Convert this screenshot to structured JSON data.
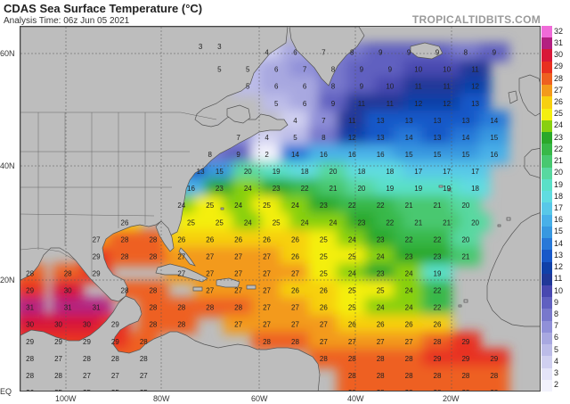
{
  "header": {
    "title": "CDAS Sea Surface Temperature (°C)",
    "subtitle": "Analysis Time: 06z Jun 05 2021",
    "brand": "TROPICALTIDBITS.COM"
  },
  "axes": {
    "lat_labels": [
      "60N",
      "40N",
      "20N",
      "EQ"
    ],
    "lon_labels": [
      "100W",
      "80W",
      "60W",
      "40W",
      "20W"
    ]
  },
  "colorbar": {
    "labels": [
      "32",
      "31",
      "30",
      "29",
      "28",
      "27",
      "26",
      "25",
      "24",
      "23",
      "22",
      "21",
      "20",
      "19",
      "18",
      "17",
      "16",
      "15",
      "14",
      "13",
      "12",
      "11",
      "10",
      "9",
      "8",
      "7",
      "6",
      "5",
      "4",
      "3",
      "2"
    ],
    "colors": [
      "#f06bd8",
      "#b32080",
      "#d81838",
      "#e83020",
      "#ee6020",
      "#f39a1c",
      "#f7d010",
      "#f4ef10",
      "#88d010",
      "#2aa82a",
      "#38b848",
      "#48c870",
      "#58d8a0",
      "#5ae0c8",
      "#60dce0",
      "#58c8e8",
      "#48b0e8",
      "#3898e0",
      "#2878d8",
      "#1858c8",
      "#1040a8",
      "#203898",
      "#4848b0",
      "#6060c0",
      "#7878cc",
      "#9090d8",
      "#a8a8e0",
      "#bcbce8",
      "#d0d0f0",
      "#e4e4f8",
      "#f2f2fc"
    ]
  },
  "readings": [
    {
      "lat": 61,
      "lon": -72,
      "v": "3"
    },
    {
      "lat": 61,
      "lon": -68,
      "v": "3"
    },
    {
      "lat": 60,
      "lon": -58,
      "v": "4"
    },
    {
      "lat": 60,
      "lon": -52,
      "v": "6"
    },
    {
      "lat": 60,
      "lon": -46,
      "v": "7"
    },
    {
      "lat": 60,
      "lon": -40,
      "v": "8"
    },
    {
      "lat": 60,
      "lon": -34,
      "v": "9"
    },
    {
      "lat": 60,
      "lon": -28,
      "v": "9"
    },
    {
      "lat": 60,
      "lon": -22,
      "v": "9"
    },
    {
      "lat": 60,
      "lon": -16,
      "v": "8"
    },
    {
      "lat": 60,
      "lon": -10,
      "v": "9"
    },
    {
      "lat": 57,
      "lon": -68,
      "v": "5"
    },
    {
      "lat": 57,
      "lon": -62,
      "v": "5"
    },
    {
      "lat": 57,
      "lon": -56,
      "v": "6"
    },
    {
      "lat": 57,
      "lon": -50,
      "v": "7"
    },
    {
      "lat": 57,
      "lon": -44,
      "v": "8"
    },
    {
      "lat": 57,
      "lon": -38,
      "v": "9"
    },
    {
      "lat": 57,
      "lon": -32,
      "v": "9"
    },
    {
      "lat": 57,
      "lon": -26,
      "v": "10"
    },
    {
      "lat": 57,
      "lon": -20,
      "v": "10"
    },
    {
      "lat": 57,
      "lon": -14,
      "v": "11"
    },
    {
      "lat": 54,
      "lon": -62,
      "v": "5"
    },
    {
      "lat": 54,
      "lon": -56,
      "v": "6"
    },
    {
      "lat": 54,
      "lon": -50,
      "v": "6"
    },
    {
      "lat": 54,
      "lon": -44,
      "v": "8"
    },
    {
      "lat": 54,
      "lon": -38,
      "v": "9"
    },
    {
      "lat": 54,
      "lon": -32,
      "v": "10"
    },
    {
      "lat": 54,
      "lon": -26,
      "v": "11"
    },
    {
      "lat": 54,
      "lon": -20,
      "v": "11"
    },
    {
      "lat": 54,
      "lon": -14,
      "v": "12"
    },
    {
      "lat": 51,
      "lon": -56,
      "v": "5"
    },
    {
      "lat": 51,
      "lon": -50,
      "v": "6"
    },
    {
      "lat": 51,
      "lon": -44,
      "v": "9"
    },
    {
      "lat": 51,
      "lon": -38,
      "v": "11"
    },
    {
      "lat": 51,
      "lon": -32,
      "v": "11"
    },
    {
      "lat": 51,
      "lon": -26,
      "v": "12"
    },
    {
      "lat": 51,
      "lon": -20,
      "v": "12"
    },
    {
      "lat": 51,
      "lon": -14,
      "v": "13"
    },
    {
      "lat": 48,
      "lon": -52,
      "v": "4"
    },
    {
      "lat": 48,
      "lon": -46,
      "v": "7"
    },
    {
      "lat": 48,
      "lon": -40,
      "v": "11"
    },
    {
      "lat": 48,
      "lon": -34,
      "v": "13"
    },
    {
      "lat": 48,
      "lon": -28,
      "v": "13"
    },
    {
      "lat": 48,
      "lon": -22,
      "v": "13"
    },
    {
      "lat": 48,
      "lon": -16,
      "v": "13"
    },
    {
      "lat": 48,
      "lon": -10,
      "v": "14"
    },
    {
      "lat": 45,
      "lon": -64,
      "v": "7"
    },
    {
      "lat": 45,
      "lon": -58,
      "v": "4"
    },
    {
      "lat": 45,
      "lon": -52,
      "v": "5"
    },
    {
      "lat": 45,
      "lon": -46,
      "v": "8"
    },
    {
      "lat": 45,
      "lon": -40,
      "v": "12"
    },
    {
      "lat": 45,
      "lon": -34,
      "v": "13"
    },
    {
      "lat": 45,
      "lon": -28,
      "v": "14"
    },
    {
      "lat": 45,
      "lon": -22,
      "v": "13"
    },
    {
      "lat": 45,
      "lon": -16,
      "v": "14"
    },
    {
      "lat": 45,
      "lon": -10,
      "v": "15"
    },
    {
      "lat": 42,
      "lon": -70,
      "v": "8"
    },
    {
      "lat": 42,
      "lon": -64,
      "v": "9"
    },
    {
      "lat": 42,
      "lon": -58,
      "v": "2"
    },
    {
      "lat": 42,
      "lon": -52,
      "v": "14"
    },
    {
      "lat": 42,
      "lon": -46,
      "v": "16"
    },
    {
      "lat": 42,
      "lon": -40,
      "v": "16"
    },
    {
      "lat": 42,
      "lon": -34,
      "v": "16"
    },
    {
      "lat": 42,
      "lon": -28,
      "v": "15"
    },
    {
      "lat": 42,
      "lon": -22,
      "v": "15"
    },
    {
      "lat": 42,
      "lon": -16,
      "v": "15"
    },
    {
      "lat": 42,
      "lon": -10,
      "v": "16"
    },
    {
      "lat": 39,
      "lon": -72,
      "v": "13"
    },
    {
      "lat": 39,
      "lon": -68,
      "v": "15"
    },
    {
      "lat": 39,
      "lon": -62,
      "v": "20"
    },
    {
      "lat": 39,
      "lon": -56,
      "v": "19"
    },
    {
      "lat": 39,
      "lon": -50,
      "v": "18"
    },
    {
      "lat": 39,
      "lon": -44,
      "v": "20"
    },
    {
      "lat": 39,
      "lon": -38,
      "v": "18"
    },
    {
      "lat": 39,
      "lon": -32,
      "v": "18"
    },
    {
      "lat": 39,
      "lon": -26,
      "v": "17"
    },
    {
      "lat": 39,
      "lon": -20,
      "v": "17"
    },
    {
      "lat": 39,
      "lon": -14,
      "v": "17"
    },
    {
      "lat": 36,
      "lon": -74,
      "v": "16"
    },
    {
      "lat": 36,
      "lon": -68,
      "v": "23"
    },
    {
      "lat": 36,
      "lon": -62,
      "v": "24"
    },
    {
      "lat": 36,
      "lon": -56,
      "v": "23"
    },
    {
      "lat": 36,
      "lon": -50,
      "v": "22"
    },
    {
      "lat": 36,
      "lon": -44,
      "v": "21"
    },
    {
      "lat": 36,
      "lon": -38,
      "v": "20"
    },
    {
      "lat": 36,
      "lon": -32,
      "v": "19"
    },
    {
      "lat": 36,
      "lon": -26,
      "v": "19"
    },
    {
      "lat": 36,
      "lon": -20,
      "v": "19"
    },
    {
      "lat": 36,
      "lon": -14,
      "v": "18"
    },
    {
      "lat": 33,
      "lon": -76,
      "v": "24"
    },
    {
      "lat": 33,
      "lon": -70,
      "v": "25"
    },
    {
      "lat": 33,
      "lon": -64,
      "v": "24"
    },
    {
      "lat": 33,
      "lon": -58,
      "v": "25"
    },
    {
      "lat": 33,
      "lon": -52,
      "v": "24"
    },
    {
      "lat": 33,
      "lon": -46,
      "v": "23"
    },
    {
      "lat": 33,
      "lon": -40,
      "v": "22"
    },
    {
      "lat": 33,
      "lon": -34,
      "v": "22"
    },
    {
      "lat": 33,
      "lon": -28,
      "v": "21"
    },
    {
      "lat": 33,
      "lon": -22,
      "v": "21"
    },
    {
      "lat": 33,
      "lon": -16,
      "v": "20"
    },
    {
      "lat": 30,
      "lon": -88,
      "v": "26"
    },
    {
      "lat": 30,
      "lon": -74,
      "v": "25"
    },
    {
      "lat": 30,
      "lon": -68,
      "v": "25"
    },
    {
      "lat": 30,
      "lon": -62,
      "v": "24"
    },
    {
      "lat": 30,
      "lon": -56,
      "v": "25"
    },
    {
      "lat": 30,
      "lon": -50,
      "v": "24"
    },
    {
      "lat": 30,
      "lon": -44,
      "v": "24"
    },
    {
      "lat": 30,
      "lon": -38,
      "v": "23"
    },
    {
      "lat": 30,
      "lon": -32,
      "v": "22"
    },
    {
      "lat": 30,
      "lon": -26,
      "v": "21"
    },
    {
      "lat": 30,
      "lon": -20,
      "v": "21"
    },
    {
      "lat": 30,
      "lon": -14,
      "v": "20"
    },
    {
      "lat": 27,
      "lon": -94,
      "v": "27"
    },
    {
      "lat": 27,
      "lon": -88,
      "v": "28"
    },
    {
      "lat": 27,
      "lon": -82,
      "v": "28"
    },
    {
      "lat": 27,
      "lon": -76,
      "v": "26"
    },
    {
      "lat": 27,
      "lon": -70,
      "v": "26"
    },
    {
      "lat": 27,
      "lon": -64,
      "v": "26"
    },
    {
      "lat": 27,
      "lon": -58,
      "v": "26"
    },
    {
      "lat": 27,
      "lon": -52,
      "v": "26"
    },
    {
      "lat": 27,
      "lon": -46,
      "v": "25"
    },
    {
      "lat": 27,
      "lon": -40,
      "v": "24"
    },
    {
      "lat": 27,
      "lon": -34,
      "v": "23"
    },
    {
      "lat": 27,
      "lon": -28,
      "v": "22"
    },
    {
      "lat": 27,
      "lon": -22,
      "v": "22"
    },
    {
      "lat": 27,
      "lon": -16,
      "v": "20"
    },
    {
      "lat": 24,
      "lon": -94,
      "v": "29"
    },
    {
      "lat": 24,
      "lon": -88,
      "v": "28"
    },
    {
      "lat": 24,
      "lon": -82,
      "v": "28"
    },
    {
      "lat": 24,
      "lon": -76,
      "v": "27"
    },
    {
      "lat": 24,
      "lon": -70,
      "v": "27"
    },
    {
      "lat": 24,
      "lon": -64,
      "v": "27"
    },
    {
      "lat": 24,
      "lon": -58,
      "v": "27"
    },
    {
      "lat": 24,
      "lon": -52,
      "v": "26"
    },
    {
      "lat": 24,
      "lon": -46,
      "v": "25"
    },
    {
      "lat": 24,
      "lon": -40,
      "v": "25"
    },
    {
      "lat": 24,
      "lon": -34,
      "v": "24"
    },
    {
      "lat": 24,
      "lon": -28,
      "v": "23"
    },
    {
      "lat": 24,
      "lon": -22,
      "v": "23"
    },
    {
      "lat": 24,
      "lon": -16,
      "v": "21"
    },
    {
      "lat": 21,
      "lon": -108,
      "v": "28"
    },
    {
      "lat": 21,
      "lon": -100,
      "v": "28"
    },
    {
      "lat": 21,
      "lon": -94,
      "v": "29"
    },
    {
      "lat": 21,
      "lon": -76,
      "v": "27"
    },
    {
      "lat": 21,
      "lon": -70,
      "v": "27"
    },
    {
      "lat": 21,
      "lon": -64,
      "v": "27"
    },
    {
      "lat": 21,
      "lon": -58,
      "v": "27"
    },
    {
      "lat": 21,
      "lon": -52,
      "v": "27"
    },
    {
      "lat": 21,
      "lon": -46,
      "v": "25"
    },
    {
      "lat": 21,
      "lon": -40,
      "v": "24"
    },
    {
      "lat": 21,
      "lon": -34,
      "v": "23"
    },
    {
      "lat": 21,
      "lon": -28,
      "v": "24"
    },
    {
      "lat": 21,
      "lon": -22,
      "v": "19"
    },
    {
      "lat": 18,
      "lon": -108,
      "v": "29"
    },
    {
      "lat": 18,
      "lon": -100,
      "v": "30"
    },
    {
      "lat": 18,
      "lon": -88,
      "v": "28"
    },
    {
      "lat": 18,
      "lon": -82,
      "v": "28"
    },
    {
      "lat": 18,
      "lon": -70,
      "v": "27"
    },
    {
      "lat": 18,
      "lon": -64,
      "v": "27"
    },
    {
      "lat": 18,
      "lon": -58,
      "v": "27"
    },
    {
      "lat": 18,
      "lon": -52,
      "v": "26"
    },
    {
      "lat": 18,
      "lon": -46,
      "v": "26"
    },
    {
      "lat": 18,
      "lon": -40,
      "v": "25"
    },
    {
      "lat": 18,
      "lon": -34,
      "v": "25"
    },
    {
      "lat": 18,
      "lon": -28,
      "v": "24"
    },
    {
      "lat": 18,
      "lon": -22,
      "v": "22"
    },
    {
      "lat": 15,
      "lon": -108,
      "v": "31"
    },
    {
      "lat": 15,
      "lon": -100,
      "v": "31"
    },
    {
      "lat": 15,
      "lon": -94,
      "v": "31"
    },
    {
      "lat": 15,
      "lon": -82,
      "v": "28"
    },
    {
      "lat": 15,
      "lon": -76,
      "v": "28"
    },
    {
      "lat": 15,
      "lon": -70,
      "v": "28"
    },
    {
      "lat": 15,
      "lon": -64,
      "v": "28"
    },
    {
      "lat": 15,
      "lon": -58,
      "v": "27"
    },
    {
      "lat": 15,
      "lon": -52,
      "v": "27"
    },
    {
      "lat": 15,
      "lon": -46,
      "v": "26"
    },
    {
      "lat": 15,
      "lon": -40,
      "v": "25"
    },
    {
      "lat": 15,
      "lon": -34,
      "v": "24"
    },
    {
      "lat": 15,
      "lon": -28,
      "v": "24"
    },
    {
      "lat": 15,
      "lon": -22,
      "v": "22"
    },
    {
      "lat": 12,
      "lon": -108,
      "v": "30"
    },
    {
      "lat": 12,
      "lon": -102,
      "v": "30"
    },
    {
      "lat": 12,
      "lon": -96,
      "v": "30"
    },
    {
      "lat": 12,
      "lon": -90,
      "v": "29"
    },
    {
      "lat": 12,
      "lon": -82,
      "v": "28"
    },
    {
      "lat": 12,
      "lon": -76,
      "v": "28"
    },
    {
      "lat": 12,
      "lon": -64,
      "v": "27"
    },
    {
      "lat": 12,
      "lon": -58,
      "v": "27"
    },
    {
      "lat": 12,
      "lon": -52,
      "v": "27"
    },
    {
      "lat": 12,
      "lon": -46,
      "v": "27"
    },
    {
      "lat": 12,
      "lon": -40,
      "v": "26"
    },
    {
      "lat": 12,
      "lon": -34,
      "v": "26"
    },
    {
      "lat": 12,
      "lon": -28,
      "v": "26"
    },
    {
      "lat": 12,
      "lon": -22,
      "v": "26"
    },
    {
      "lat": 9,
      "lon": -108,
      "v": "29"
    },
    {
      "lat": 9,
      "lon": -102,
      "v": "29"
    },
    {
      "lat": 9,
      "lon": -96,
      "v": "29"
    },
    {
      "lat": 9,
      "lon": -90,
      "v": "29"
    },
    {
      "lat": 9,
      "lon": -84,
      "v": "28"
    },
    {
      "lat": 9,
      "lon": -58,
      "v": "28"
    },
    {
      "lat": 9,
      "lon": -52,
      "v": "28"
    },
    {
      "lat": 9,
      "lon": -46,
      "v": "27"
    },
    {
      "lat": 9,
      "lon": -40,
      "v": "27"
    },
    {
      "lat": 9,
      "lon": -34,
      "v": "27"
    },
    {
      "lat": 9,
      "lon": -28,
      "v": "27"
    },
    {
      "lat": 9,
      "lon": -22,
      "v": "28"
    },
    {
      "lat": 9,
      "lon": -16,
      "v": "29"
    },
    {
      "lat": 6,
      "lon": -108,
      "v": "28"
    },
    {
      "lat": 6,
      "lon": -102,
      "v": "27"
    },
    {
      "lat": 6,
      "lon": -96,
      "v": "28"
    },
    {
      "lat": 6,
      "lon": -90,
      "v": "28"
    },
    {
      "lat": 6,
      "lon": -84,
      "v": "28"
    },
    {
      "lat": 6,
      "lon": -46,
      "v": "28"
    },
    {
      "lat": 6,
      "lon": -40,
      "v": "28"
    },
    {
      "lat": 6,
      "lon": -34,
      "v": "28"
    },
    {
      "lat": 6,
      "lon": -28,
      "v": "28"
    },
    {
      "lat": 6,
      "lon": -22,
      "v": "29"
    },
    {
      "lat": 6,
      "lon": -16,
      "v": "29"
    },
    {
      "lat": 6,
      "lon": -10,
      "v": "29"
    },
    {
      "lat": 3,
      "lon": -108,
      "v": "28"
    },
    {
      "lat": 3,
      "lon": -102,
      "v": "28"
    },
    {
      "lat": 3,
      "lon": -96,
      "v": "27"
    },
    {
      "lat": 3,
      "lon": -90,
      "v": "27"
    },
    {
      "lat": 3,
      "lon": -84,
      "v": "27"
    },
    {
      "lat": 3,
      "lon": -40,
      "v": "28"
    },
    {
      "lat": 3,
      "lon": -34,
      "v": "28"
    },
    {
      "lat": 3,
      "lon": -28,
      "v": "28"
    },
    {
      "lat": 3,
      "lon": -22,
      "v": "28"
    },
    {
      "lat": 3,
      "lon": -16,
      "v": "28"
    },
    {
      "lat": 3,
      "lon": -10,
      "v": "28"
    },
    {
      "lat": 0,
      "lon": -108,
      "v": "26"
    },
    {
      "lat": 0,
      "lon": -102,
      "v": "25"
    },
    {
      "lat": 0,
      "lon": -96,
      "v": "25"
    },
    {
      "lat": 0,
      "lon": -90,
      "v": "25"
    },
    {
      "lat": 0,
      "lon": -84,
      "v": "25"
    },
    {
      "lat": 0,
      "lon": -40,
      "v": "28"
    },
    {
      "lat": 0,
      "lon": -34,
      "v": "28"
    },
    {
      "lat": 0,
      "lon": -28,
      "v": "28"
    },
    {
      "lat": 0,
      "lon": -22,
      "v": "28"
    },
    {
      "lat": 0,
      "lon": -16,
      "v": "28"
    },
    {
      "lat": 0,
      "lon": -10,
      "v": "28"
    }
  ]
}
